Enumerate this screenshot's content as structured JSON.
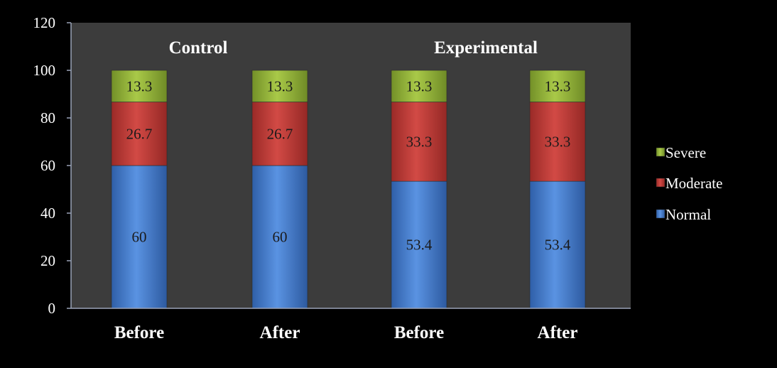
{
  "chart_data": {
    "type": "bar",
    "stacked": true,
    "categories": [
      "Before",
      "After",
      "Before",
      "After"
    ],
    "groups": [
      {
        "label": "Control",
        "categories": [
          0,
          1
        ]
      },
      {
        "label": "Experimental",
        "categories": [
          2,
          3
        ]
      }
    ],
    "series": [
      {
        "name": "Normal",
        "values": [
          60,
          60,
          53.4,
          53.4
        ],
        "labels": [
          "60",
          "60",
          "53.4",
          "53.4"
        ],
        "color": "#4f86d8"
      },
      {
        "name": "Moderate",
        "values": [
          26.7,
          26.7,
          33.3,
          33.3
        ],
        "labels": [
          "26.7",
          "26.7",
          "33.3",
          "33.3"
        ],
        "color": "#c9413d"
      },
      {
        "name": "Severe",
        "values": [
          13.3,
          13.3,
          13.3,
          13.3
        ],
        "labels": [
          "13.3",
          "13.3",
          "13.3",
          "13.3"
        ],
        "color": "#9bbb3c"
      }
    ],
    "ylim": [
      0,
      120
    ],
    "yticks": [
      "0",
      "20",
      "40",
      "60",
      "80",
      "100",
      "120"
    ],
    "grid": false,
    "legend_position": "right",
    "plot_background": "#3c3c3c",
    "page_background": "#000000"
  }
}
